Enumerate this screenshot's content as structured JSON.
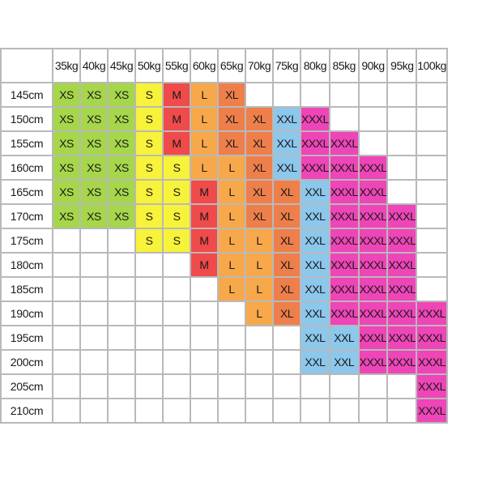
{
  "weight_headers": [
    "35kg",
    "40kg",
    "45kg",
    "50kg",
    "55kg",
    "60kg",
    "65kg",
    "70kg",
    "75kg",
    "80kg",
    "85kg",
    "90kg",
    "95kg",
    "100kg"
  ],
  "rows": [
    {
      "height": "145cm",
      "sizes": [
        "XS",
        "XS",
        "XS",
        "S",
        "M",
        "L",
        "XL",
        "",
        "",
        "",
        "",
        "",
        "",
        ""
      ]
    },
    {
      "height": "150cm",
      "sizes": [
        "XS",
        "XS",
        "XS",
        "S",
        "M",
        "L",
        "XL",
        "XL",
        "XXL",
        "XXXL",
        "",
        "",
        "",
        ""
      ]
    },
    {
      "height": "155cm",
      "sizes": [
        "XS",
        "XS",
        "XS",
        "S",
        "M",
        "L",
        "XL",
        "XL",
        "XXL",
        "XXXL",
        "XXXL",
        "",
        "",
        ""
      ]
    },
    {
      "height": "160cm",
      "sizes": [
        "XS",
        "XS",
        "XS",
        "S",
        "S",
        "L",
        "L",
        "XL",
        "XXL",
        "XXXL",
        "XXXL",
        "XXXL",
        "",
        ""
      ]
    },
    {
      "height": "165cm",
      "sizes": [
        "XS",
        "XS",
        "XS",
        "S",
        "S",
        "M",
        "L",
        "XL",
        "XL",
        "XXL",
        "XXXL",
        "XXXL",
        "",
        ""
      ]
    },
    {
      "height": "170cm",
      "sizes": [
        "XS",
        "XS",
        "XS",
        "S",
        "S",
        "M",
        "L",
        "XL",
        "XL",
        "XXL",
        "XXXL",
        "XXXL",
        "XXXL",
        ""
      ]
    },
    {
      "height": "175cm",
      "sizes": [
        "",
        "",
        "",
        "S",
        "S",
        "M",
        "L",
        "L",
        "XL",
        "XXL",
        "XXXL",
        "XXXL",
        "XXXL",
        ""
      ]
    },
    {
      "height": "180cm",
      "sizes": [
        "",
        "",
        "",
        "",
        "",
        "M",
        "L",
        "L",
        "XL",
        "XXL",
        "XXXL",
        "XXXL",
        "XXXL",
        ""
      ]
    },
    {
      "height": "185cm",
      "sizes": [
        "",
        "",
        "",
        "",
        "",
        "",
        "L",
        "L",
        "XL",
        "XXL",
        "XXXL",
        "XXXL",
        "XXXL",
        ""
      ]
    },
    {
      "height": "190cm",
      "sizes": [
        "",
        "",
        "",
        "",
        "",
        "",
        "",
        "L",
        "XL",
        "XXL",
        "XXXL",
        "XXXL",
        "XXXL",
        "XXXL"
      ]
    },
    {
      "height": "195cm",
      "sizes": [
        "",
        "",
        "",
        "",
        "",
        "",
        "",
        "",
        "",
        "XXL",
        "XXL",
        "XXXL",
        "XXXL",
        "XXXL"
      ]
    },
    {
      "height": "200cm",
      "sizes": [
        "",
        "",
        "",
        "",
        "",
        "",
        "",
        "",
        "",
        "XXL",
        "XXL",
        "XXXL",
        "XXXL",
        "XXXL"
      ]
    },
    {
      "height": "205cm",
      "sizes": [
        "",
        "",
        "",
        "",
        "",
        "",
        "",
        "",
        "",
        "",
        "",
        "",
        "",
        "XXXL"
      ]
    },
    {
      "height": "210cm",
      "sizes": [
        "",
        "",
        "",
        "",
        "",
        "",
        "",
        "",
        "",
        "",
        "",
        "",
        "",
        "XXXL"
      ]
    }
  ],
  "colors": {
    "XS": "#a6d64a",
    "S": "#f7f23a",
    "M": "#f04a4a",
    "L": "#f7a84a",
    "XL": "#ef7f4a",
    "XXL": "#8cc7ec",
    "XXXL": "#ee45b8",
    "empty": "#ffffff",
    "grid": "#b9b9b9"
  }
}
